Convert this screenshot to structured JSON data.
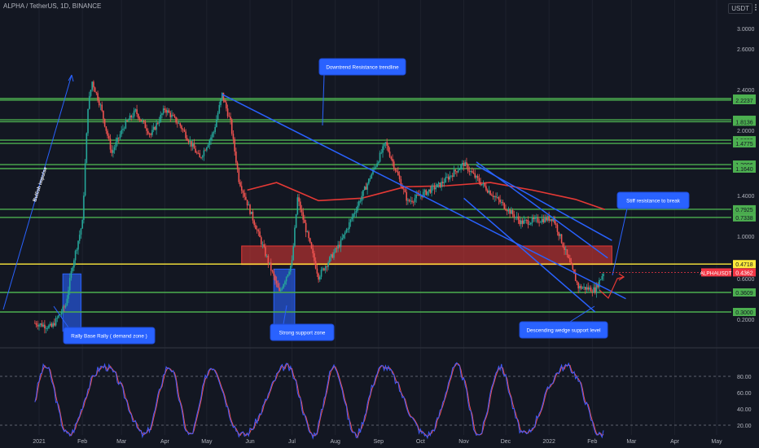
{
  "header": {
    "title": "ALPHA / TetherUS, 1D, BINANCE",
    "currency": "USDT"
  },
  "colors": {
    "background": "#131722",
    "green_level": "#4caf50",
    "trendline": "#2962ff",
    "ma": "#e53935",
    "resistance_zone": "#e53935",
    "demand_zone": "#2962ff",
    "price_label": "#f23645",
    "yellow_line": "#ffeb3b",
    "rsi_blue": "#3d5afe",
    "rsi_red": "#ef5350",
    "up_candle": "#26a69a",
    "down_candle": "#ef5350"
  },
  "chart_data": [
    {
      "type": "line",
      "subtype": "candlestick",
      "series_name": "ALPHAUSDT",
      "y_scale": "log",
      "x_axis_labels": [
        "2021",
        "Feb",
        "Mar",
        "Apr",
        "May",
        "Jun",
        "Jul",
        "Aug",
        "Sep",
        "Oct",
        "Nov",
        "Dec",
        "2022",
        "Feb",
        "Mar",
        "Apr",
        "May"
      ],
      "y_tick_labels": [
        "3.0000",
        "2.6000",
        "2.4000",
        "2.0000",
        "1.4000",
        "1.0000",
        "0.6000",
        "0.2000",
        "-0.2000"
      ],
      "price_label": "0.4362",
      "current_price": 0.4362,
      "horizontal_levels": [
        {
          "label": "2.2579",
          "value": 2.2579
        },
        {
          "label": "2.2237",
          "value": 2.2237
        },
        {
          "label": "1.8478",
          "value": 1.8478
        },
        {
          "label": "1.8136",
          "value": 1.8136
        },
        {
          "label": "1.5230",
          "value": 1.523
        },
        {
          "label": "1.4775",
          "value": 1.4775
        },
        {
          "label": "1.2096",
          "value": 1.2096
        },
        {
          "label": "1.1640",
          "value": 1.164
        },
        {
          "label": "0.7925",
          "value": 0.7925
        },
        {
          "label": "0.7338",
          "value": 0.7338
        },
        {
          "label": "0.4718",
          "value": 0.4718
        },
        {
          "label": "0.3609",
          "value": 0.3609
        },
        {
          "label": "0.3000",
          "value": 0.3
        }
      ],
      "price_path": [
        {
          "x": "2020-12-29",
          "y": 0.27
        },
        {
          "x": "2021-01-10",
          "y": 0.26
        },
        {
          "x": "2021-01-20",
          "y": 0.32
        },
        {
          "x": "2021-01-25",
          "y": 0.47
        },
        {
          "x": "2021-02-01",
          "y": 0.7
        },
        {
          "x": "2021-02-05",
          "y": 2.1
        },
        {
          "x": "2021-02-08",
          "y": 2.65
        },
        {
          "x": "2021-02-14",
          "y": 2.1
        },
        {
          "x": "2021-02-22",
          "y": 1.35
        },
        {
          "x": "2021-03-03",
          "y": 1.75
        },
        {
          "x": "2021-03-11",
          "y": 2.0
        },
        {
          "x": "2021-03-22",
          "y": 1.6
        },
        {
          "x": "2021-04-01",
          "y": 2.05
        },
        {
          "x": "2021-04-12",
          "y": 1.75
        },
        {
          "x": "2021-04-26",
          "y": 1.28
        },
        {
          "x": "2021-05-06",
          "y": 1.65
        },
        {
          "x": "2021-05-12",
          "y": 2.35
        },
        {
          "x": "2021-05-18",
          "y": 1.8
        },
        {
          "x": "2021-05-24",
          "y": 1.05
        },
        {
          "x": "2021-06-01",
          "y": 0.78
        },
        {
          "x": "2021-06-22",
          "y": 0.36
        },
        {
          "x": "2021-07-01",
          "y": 0.48
        },
        {
          "x": "2021-07-05",
          "y": 0.88
        },
        {
          "x": "2021-07-20",
          "y": 0.42
        },
        {
          "x": "2021-08-05",
          "y": 0.58
        },
        {
          "x": "2021-08-20",
          "y": 0.9
        },
        {
          "x": "2021-09-06",
          "y": 1.48
        },
        {
          "x": "2021-09-22",
          "y": 0.85
        },
        {
          "x": "2021-10-15",
          "y": 1.0
        },
        {
          "x": "2021-11-01",
          "y": 1.22
        },
        {
          "x": "2021-11-10",
          "y": 1.06
        },
        {
          "x": "2021-11-26",
          "y": 0.86
        },
        {
          "x": "2021-12-12",
          "y": 0.7
        },
        {
          "x": "2022-01-04",
          "y": 0.73
        },
        {
          "x": "2022-01-22",
          "y": 0.38
        },
        {
          "x": "2022-02-03",
          "y": 0.37
        },
        {
          "x": "2022-02-09",
          "y": 0.4362
        }
      ],
      "moving_average": [
        {
          "x": "2021-05-30",
          "y": 0.95
        },
        {
          "x": "2021-06-20",
          "y": 1.02
        },
        {
          "x": "2021-07-20",
          "y": 0.86
        },
        {
          "x": "2021-08-20",
          "y": 0.88
        },
        {
          "x": "2021-09-20",
          "y": 0.98
        },
        {
          "x": "2021-10-20",
          "y": 0.99
        },
        {
          "x": "2021-11-20",
          "y": 1.02
        },
        {
          "x": "2021-12-20",
          "y": 0.95
        },
        {
          "x": "2022-01-20",
          "y": 0.87
        },
        {
          "x": "2022-02-10",
          "y": 0.79
        }
      ],
      "zones": [
        {
          "name": "resistance",
          "x_start": "2021-05-26",
          "x_end": "2022-02-15",
          "y_low": 0.47,
          "y_high": 0.56
        },
        {
          "name": "demand-zone",
          "x_start": "2021-01-18",
          "x_end": "2021-01-31",
          "y_low": 0.25,
          "y_high": 0.43
        },
        {
          "name": "support-zone",
          "x_start": "2021-06-18",
          "x_end": "2021-07-03",
          "y_low": 0.24,
          "y_high": 0.45
        }
      ],
      "trendlines": [
        {
          "name": "downtrend-resistance",
          "from": {
            "x": "2021-05-12",
            "y": 2.35
          },
          "to": {
            "x": "2022-02-25",
            "y": 0.34
          }
        },
        {
          "name": "wedge-upper",
          "from": {
            "x": "2021-11-10",
            "y": 1.24
          },
          "to": {
            "x": "2022-02-12",
            "y": 0.5
          }
        },
        {
          "name": "wedge-lower",
          "from": {
            "x": "2021-11-01",
            "y": 0.88
          },
          "to": {
            "x": "2022-02-03",
            "y": 0.3
          }
        },
        {
          "name": "wedge-mid",
          "from": {
            "x": "2021-11-10",
            "y": 1.2
          },
          "to": {
            "x": "2022-02-15",
            "y": 0.59
          }
        }
      ],
      "annotations": [
        {
          "text": "Downtrend Resistance trendline"
        },
        {
          "text": "Stiff resistance to break"
        },
        {
          "text": "Rally Base Rally ( demand zone )"
        },
        {
          "text": "Strong support zone"
        },
        {
          "text": "Descending wedge support level"
        },
        {
          "text": "Bullish impulse"
        }
      ]
    },
    {
      "type": "line",
      "name": "rsi",
      "y_tick_labels": [
        "80.00",
        "60.00",
        "40.00",
        "20.00"
      ],
      "ylim": [
        0,
        100
      ],
      "reference_levels": [
        80,
        20
      ]
    }
  ]
}
